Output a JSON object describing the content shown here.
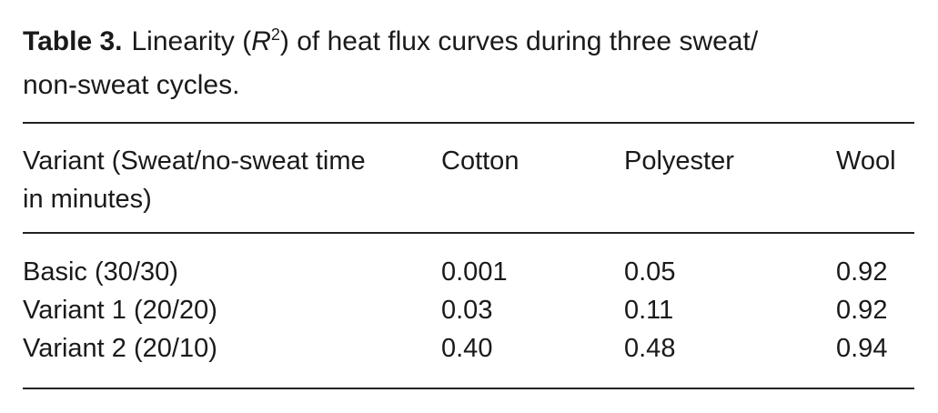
{
  "caption": {
    "label": "Table 3.",
    "text_before": "Linearity (",
    "symbol": "R",
    "superscript": "2",
    "text_after": ") of heat flux curves during three sweat/",
    "line2": "non-sweat cycles."
  },
  "table": {
    "header": [
      "Variant (Sweat/no-sweat time in minutes)",
      "Cotton",
      "Polyester",
      "Wool"
    ],
    "rows": [
      [
        "Basic (30/30)",
        "0.001",
        "0.05",
        "0.92"
      ],
      [
        "Variant 1 (20/20)",
        "0.03",
        "0.11",
        "0.92"
      ],
      [
        "Variant 2 (20/10)",
        "0.40",
        "0.48",
        "0.94"
      ]
    ]
  }
}
